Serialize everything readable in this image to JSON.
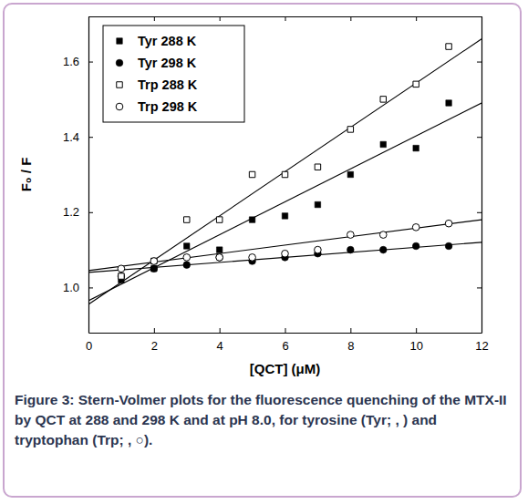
{
  "chart_data": {
    "type": "scatter",
    "x_label": "[QCT] (μM)",
    "y_label": "F₀ / F",
    "caption": "Figure 3: Stern-Volmer plots for the fluorescence quenching of the MTX-II by QCT at 288 and 298 K and at pH 8.0, for tyrosine (Tyr; , ) and tryptophan (Trp; , ○).",
    "xlim": [
      0,
      12
    ],
    "xticks": [
      0,
      2,
      4,
      6,
      8,
      10,
      12
    ],
    "ylim": [
      0.88,
      1.72
    ],
    "yticks": [
      {
        "value": 1.0,
        "label": "1.0"
      },
      {
        "value": 1.2,
        "label": "1.2"
      },
      {
        "value": 1.4,
        "label": "1.4"
      },
      {
        "value": 1.6,
        "label": "1.6"
      }
    ],
    "legend": "upper left",
    "x": [
      1,
      2,
      3,
      4,
      5,
      6,
      7,
      8,
      9,
      10,
      11
    ],
    "series": [
      {
        "name": "Tyr 288 K",
        "type": "scatter",
        "marker": "square",
        "color": "#000000",
        "values": [
          1.02,
          1.05,
          1.11,
          1.1,
          1.18,
          1.19,
          1.22,
          1.3,
          1.38,
          1.37,
          1.49
        ]
      },
      {
        "name": "Tyr 298 K",
        "type": "scatter",
        "marker": "circle",
        "color": "#000000",
        "values": [
          1.03,
          1.05,
          1.06,
          1.08,
          1.07,
          1.08,
          1.09,
          1.1,
          1.1,
          1.11,
          1.11
        ]
      },
      {
        "name": "Trp 288 K",
        "type": "scatter",
        "marker": "square-open",
        "color": "#000000",
        "values": [
          1.03,
          1.07,
          1.18,
          1.18,
          1.3,
          1.3,
          1.32,
          1.42,
          1.5,
          1.54,
          1.64
        ]
      },
      {
        "name": "Trp 298 K",
        "type": "scatter",
        "marker": "circle-open",
        "color": "#000000",
        "values": [
          1.05,
          1.07,
          1.08,
          1.08,
          1.08,
          1.09,
          1.1,
          1.14,
          1.14,
          1.16,
          1.17
        ]
      },
      {
        "type": "line",
        "line_style": "solid",
        "color": "#000000",
        "x": [
          0,
          12
        ],
        "values": [
          0.965,
          1.49
        ]
      },
      {
        "type": "line",
        "line_style": "solid",
        "color": "#000000",
        "x": [
          0,
          12
        ],
        "values": [
          1.04,
          1.12
        ]
      },
      {
        "type": "line",
        "line_style": "solid",
        "color": "#000000",
        "x": [
          0,
          12
        ],
        "values": [
          0.955,
          1.66
        ]
      },
      {
        "type": "line",
        "line_style": "solid",
        "color": "#000000",
        "x": [
          0,
          12
        ],
        "values": [
          1.045,
          1.18
        ]
      }
    ]
  }
}
